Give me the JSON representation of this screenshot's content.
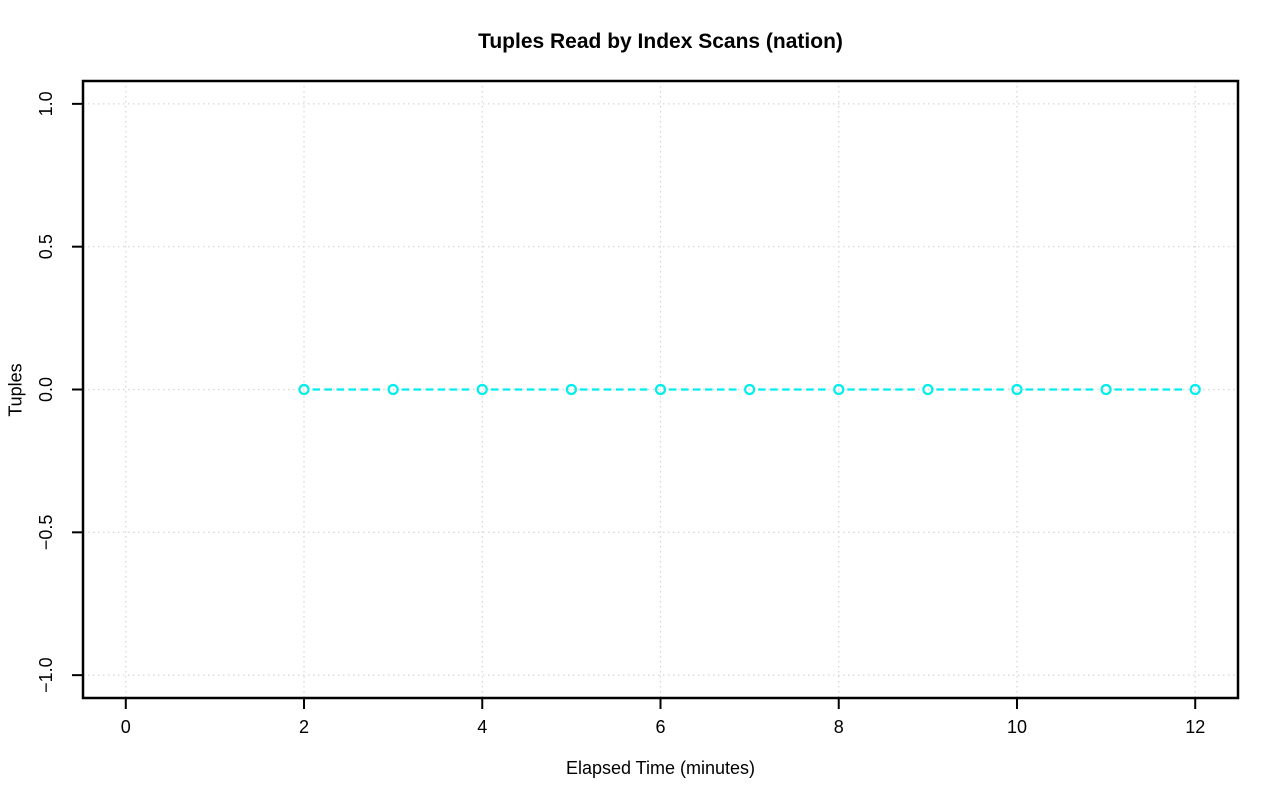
{
  "page": {
    "background": "#ffffff"
  },
  "chart_data": {
    "type": "line",
    "title": "Tuples Read by Index Scans (nation)",
    "xlabel": "Elapsed Time (minutes)",
    "ylabel": "Tuples",
    "x": [
      2,
      3,
      4,
      5,
      6,
      7,
      8,
      9,
      10,
      11,
      12
    ],
    "y": [
      0,
      0,
      0,
      0,
      0,
      0,
      0,
      0,
      0,
      0,
      0
    ],
    "xticks": [
      0,
      2,
      4,
      6,
      8,
      10,
      12
    ],
    "xtick_labels": [
      "0",
      "2",
      "4",
      "6",
      "8",
      "10",
      "12"
    ],
    "yticks": [
      -1.0,
      -0.5,
      0.0,
      0.5,
      1.0
    ],
    "ytick_labels": [
      "−1.0",
      "−0.5",
      "0.0",
      "0.5",
      "1.0"
    ],
    "xlim": [
      -0.48,
      12.48
    ],
    "ylim": [
      -1.08,
      1.08
    ],
    "grid": "on",
    "grid_style": "dotted",
    "grid_color": "#d4d4d4",
    "line_color": "#00eeee",
    "line_style": "dashed",
    "marker": "open-circle",
    "marker_color": "#00eeee",
    "box_color": "#000000",
    "tick_color": "#000000",
    "legend": null
  }
}
